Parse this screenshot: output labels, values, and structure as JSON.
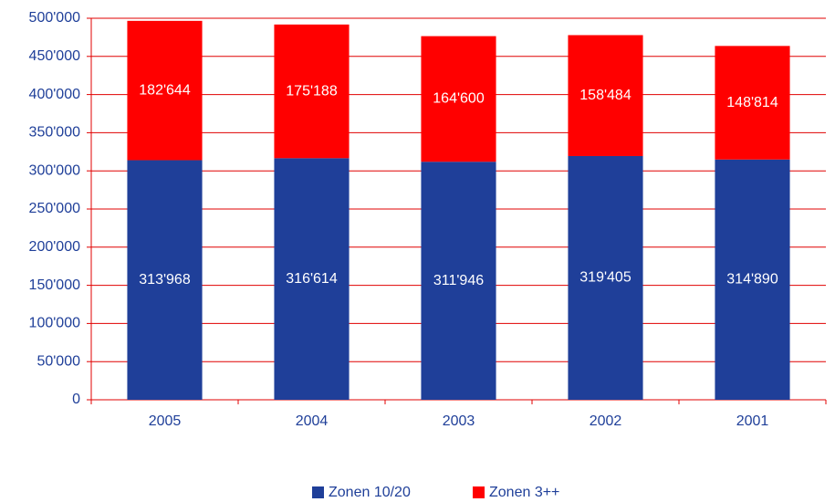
{
  "chart_data": {
    "type": "stacked_bar",
    "categories": [
      "2005",
      "2004",
      "2003",
      "2002",
      "2001"
    ],
    "series": [
      {
        "name": "Zonen 10/20",
        "color": "#1f3f99",
        "values": [
          313968,
          316614,
          311946,
          319405,
          314890
        ],
        "value_labels": [
          "313'968",
          "316'614",
          "311'946",
          "319'405",
          "314'890"
        ]
      },
      {
        "name": "Zonen 3++",
        "color": "#ff0000",
        "values": [
          182644,
          175188,
          164600,
          158484,
          148814
        ],
        "value_labels": [
          "182'644",
          "175'188",
          "164'600",
          "158'484",
          "148'814"
        ]
      }
    ],
    "ylim": [
      0,
      500000
    ],
    "yticks": [
      0,
      {
        "value": 50000,
        "label": "50'000"
      },
      {
        "value": 100000,
        "label": "100'000"
      },
      {
        "value": 150000,
        "label": "150'000"
      },
      {
        "value": 200000,
        "label": "200'000"
      },
      {
        "value": 250000,
        "label": "250'000"
      },
      {
        "value": 300000,
        "label": "300'000"
      },
      {
        "value": 350000,
        "label": "350'000"
      },
      {
        "value": 400000,
        "label": "400'000"
      },
      {
        "value": 450000,
        "label": "450'000"
      },
      {
        "value": 500000,
        "label": "500'000"
      }
    ],
    "grid": true,
    "grid_color": "#e00000",
    "legend": "bottom"
  }
}
